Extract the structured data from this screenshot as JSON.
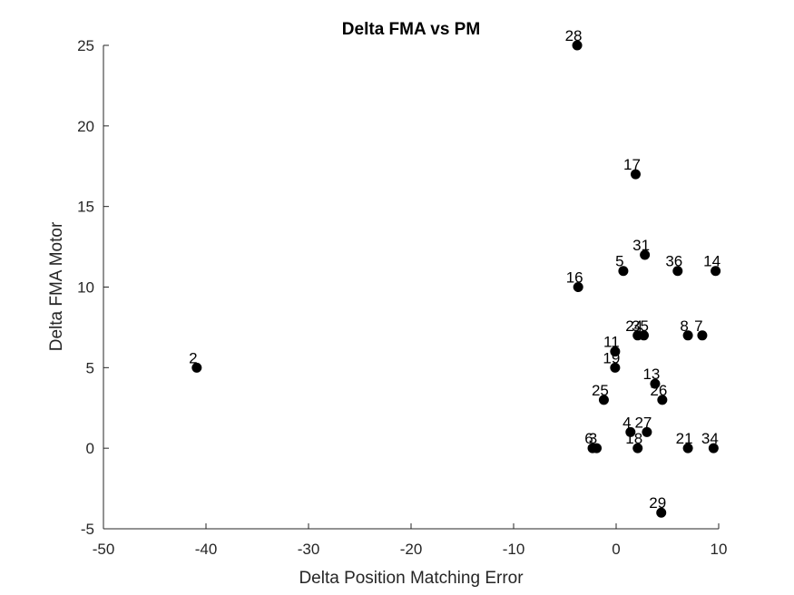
{
  "chart_data": {
    "type": "scatter",
    "title": "Delta FMA vs PM",
    "xlabel": "Delta Position Matching Error",
    "ylabel": "Delta FMA Motor",
    "xlim": [
      -50,
      10
    ],
    "ylim": [
      -5,
      25
    ],
    "xticks": [
      -50,
      -40,
      -30,
      -20,
      -10,
      0,
      10
    ],
    "yticks": [
      -5,
      0,
      5,
      10,
      15,
      20,
      25
    ],
    "xtick_labels": [
      "-50",
      "-40",
      "-30",
      "-20",
      "-10",
      "0",
      "10"
    ],
    "ytick_labels": [
      "-5",
      "0",
      "5",
      "10",
      "15",
      "20",
      "25"
    ],
    "grid": false,
    "marker_color": "#000000",
    "points": [
      {
        "label": "28",
        "x": -3.8,
        "y": 25
      },
      {
        "label": "17",
        "x": 1.9,
        "y": 17
      },
      {
        "label": "31",
        "x": 2.8,
        "y": 12
      },
      {
        "label": "5",
        "x": 0.7,
        "y": 11
      },
      {
        "label": "36",
        "x": 6.0,
        "y": 11
      },
      {
        "label": "14",
        "x": 9.7,
        "y": 11
      },
      {
        "label": "16",
        "x": -3.7,
        "y": 10
      },
      {
        "label": "2",
        "x": -40.9,
        "y": 5
      },
      {
        "label": "24",
        "x": 2.1,
        "y": 7
      },
      {
        "label": "35",
        "x": 2.7,
        "y": 7
      },
      {
        "label": "8",
        "x": 7.0,
        "y": 7
      },
      {
        "label": "7",
        "x": 8.4,
        "y": 7
      },
      {
        "label": "11",
        "x": -0.1,
        "y": 6
      },
      {
        "label": "19",
        "x": -0.1,
        "y": 5
      },
      {
        "label": "13",
        "x": 3.8,
        "y": 4
      },
      {
        "label": "25",
        "x": -1.2,
        "y": 3
      },
      {
        "label": "26",
        "x": 4.5,
        "y": 3
      },
      {
        "label": "4",
        "x": 1.4,
        "y": 1
      },
      {
        "label": "27",
        "x": 3.0,
        "y": 1
      },
      {
        "label": "6",
        "x": -2.3,
        "y": 0
      },
      {
        "label": "3",
        "x": -1.9,
        "y": 0
      },
      {
        "label": "18",
        "x": 2.1,
        "y": 0
      },
      {
        "label": "21",
        "x": 7.0,
        "y": 0
      },
      {
        "label": "34",
        "x": 9.5,
        "y": 0
      },
      {
        "label": "29",
        "x": 4.4,
        "y": -4
      }
    ]
  }
}
